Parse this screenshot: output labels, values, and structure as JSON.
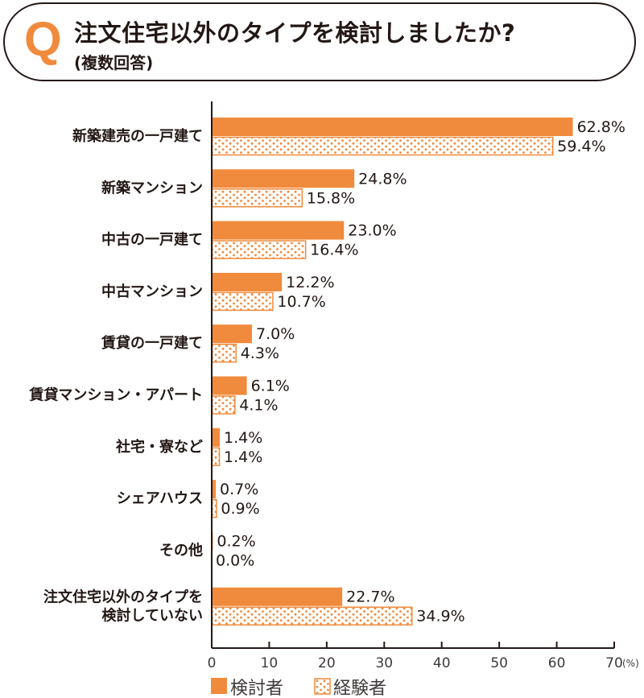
{
  "question": {
    "mark": "Q",
    "title": "注文住宅以外のタイプを検討しましたか?",
    "subtitle": "(複数回答)"
  },
  "chart_data": {
    "type": "bar",
    "orientation": "horizontal",
    "categories": [
      "新築建売の一戸建て",
      "新築マンション",
      "中古の一戸建て",
      "中古マンション",
      "賃貸の一戸建て",
      "賃貸マンション・アパート",
      "社宅・寮など",
      "シェアハウス",
      "その他",
      "注文住宅以外のタイプを\n検討していない"
    ],
    "series": [
      {
        "name": "検討者",
        "style": "solid",
        "values": [
          62.8,
          24.8,
          23.0,
          12.2,
          7.0,
          6.1,
          1.4,
          0.7,
          0.2,
          22.7
        ]
      },
      {
        "name": "経験者",
        "style": "dotted",
        "values": [
          59.4,
          15.8,
          16.4,
          10.7,
          4.3,
          4.1,
          1.4,
          0.9,
          0.0,
          34.9
        ]
      }
    ],
    "value_labels": [
      [
        "62.8%",
        "24.8%",
        "23.0%",
        "12.2%",
        "7.0%",
        "6.1%",
        "1.4%",
        "0.7%",
        "0.2%",
        "22.7%"
      ],
      [
        "59.4%",
        "15.8%",
        "16.4%",
        "10.7%",
        "4.3%",
        "4.1%",
        "1.4%",
        "0.9%",
        "0.0%",
        "34.9%"
      ]
    ],
    "xlim": [
      0,
      70
    ],
    "xticks": [
      "0",
      "10",
      "20",
      "30",
      "40",
      "50",
      "60",
      "70"
    ],
    "xunit": "(%)",
    "grid": false,
    "legend_position": "bottom-left",
    "colors": {
      "accent": "#f08a3c",
      "text": "#231815"
    }
  }
}
